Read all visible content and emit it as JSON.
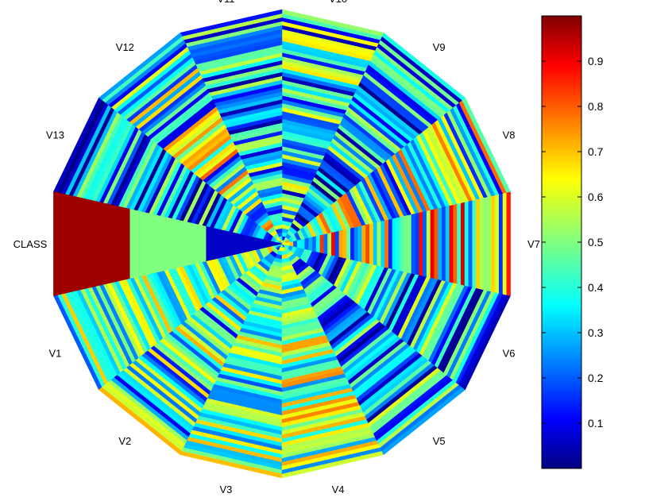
{
  "chart_data": {
    "type": "heatmap",
    "layout": "polar-spoke",
    "variables": [
      "V1",
      "V2",
      "V3",
      "V4",
      "V5",
      "V6",
      "V7",
      "V8",
      "V9",
      "V10",
      "V11",
      "V12",
      "V13",
      "CLASS"
    ],
    "colormap": "jet",
    "colorbar": {
      "range": [
        0,
        1
      ],
      "ticks": [
        "0.1",
        "0.2",
        "0.3",
        "0.4",
        "0.5",
        "0.6",
        "0.7",
        "0.8",
        "0.9"
      ]
    },
    "class_profile": [
      {
        "from": 0.0,
        "to": 0.33,
        "value": 0.07
      },
      {
        "from": 0.33,
        "to": 0.67,
        "value": 0.5
      },
      {
        "from": 0.67,
        "to": 1.0,
        "value": 0.97
      }
    ],
    "variable_character": [
      {
        "name": "V1",
        "base": 0.45,
        "spread": 0.25
      },
      {
        "name": "V2",
        "base": 0.4,
        "spread": 0.3
      },
      {
        "name": "V3",
        "base": 0.45,
        "spread": 0.25
      },
      {
        "name": "V4",
        "base": 0.5,
        "spread": 0.25
      },
      {
        "name": "V5",
        "base": 0.3,
        "spread": 0.3
      },
      {
        "name": "V6",
        "base": 0.3,
        "spread": 0.3
      },
      {
        "name": "V7",
        "base": 0.55,
        "spread": 0.4
      },
      {
        "name": "V8",
        "base": 0.45,
        "spread": 0.35
      },
      {
        "name": "V9",
        "base": 0.3,
        "spread": 0.3
      },
      {
        "name": "V10",
        "base": 0.35,
        "spread": 0.3
      },
      {
        "name": "V11",
        "base": 0.3,
        "spread": 0.3
      },
      {
        "name": "V12",
        "base": 0.45,
        "spread": 0.35
      },
      {
        "name": "V13",
        "base": 0.3,
        "spread": 0.3
      }
    ]
  }
}
